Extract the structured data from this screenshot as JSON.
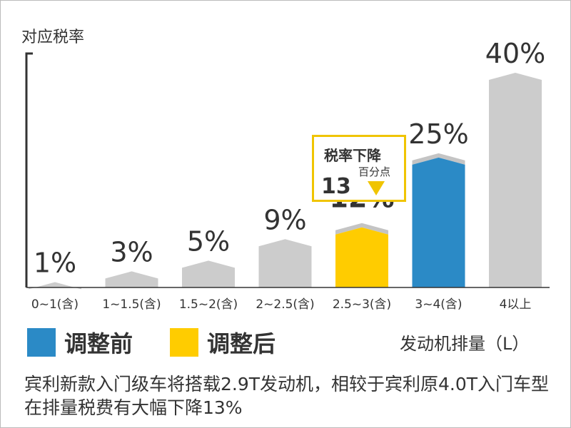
{
  "chart_data": {
    "type": "bar",
    "ylabel": "对应税率",
    "xlabel": "发动机排量（L）",
    "categories": [
      "0~1(含)",
      "1~1.5(含)",
      "1.5~2(含)",
      "2~2.5(含)",
      "2.5~3(含)",
      "3~4(含)",
      "4以上"
    ],
    "values": [
      1,
      3,
      5,
      9,
      12,
      25,
      40
    ],
    "value_labels": [
      "1%",
      "3%",
      "5%",
      "9%",
      "12%",
      "25%",
      "40%"
    ],
    "ylim": [
      0,
      40
    ],
    "series": [
      {
        "name": "调整前",
        "color": "#2b8ac6"
      },
      {
        "name": "调整后",
        "color": "#ffcc00"
      }
    ],
    "bar_colors": [
      "#cccccc",
      "#cccccc",
      "#cccccc",
      "#cccccc",
      "#ffcc00",
      "#2b8ac6",
      "#cccccc"
    ],
    "highlight_previous": [
      null,
      null,
      null,
      null,
      null,
      25,
      null
    ],
    "annotation": {
      "title": "税率下降",
      "subtitle": "百分点",
      "value": "13"
    },
    "legend_position": "bottom-left",
    "grid": false
  },
  "caption": "宾利新款入门级车将搭载2.9T发动机，相较于宾利原4.0T入门车型在排量税费有大幅下降13%"
}
